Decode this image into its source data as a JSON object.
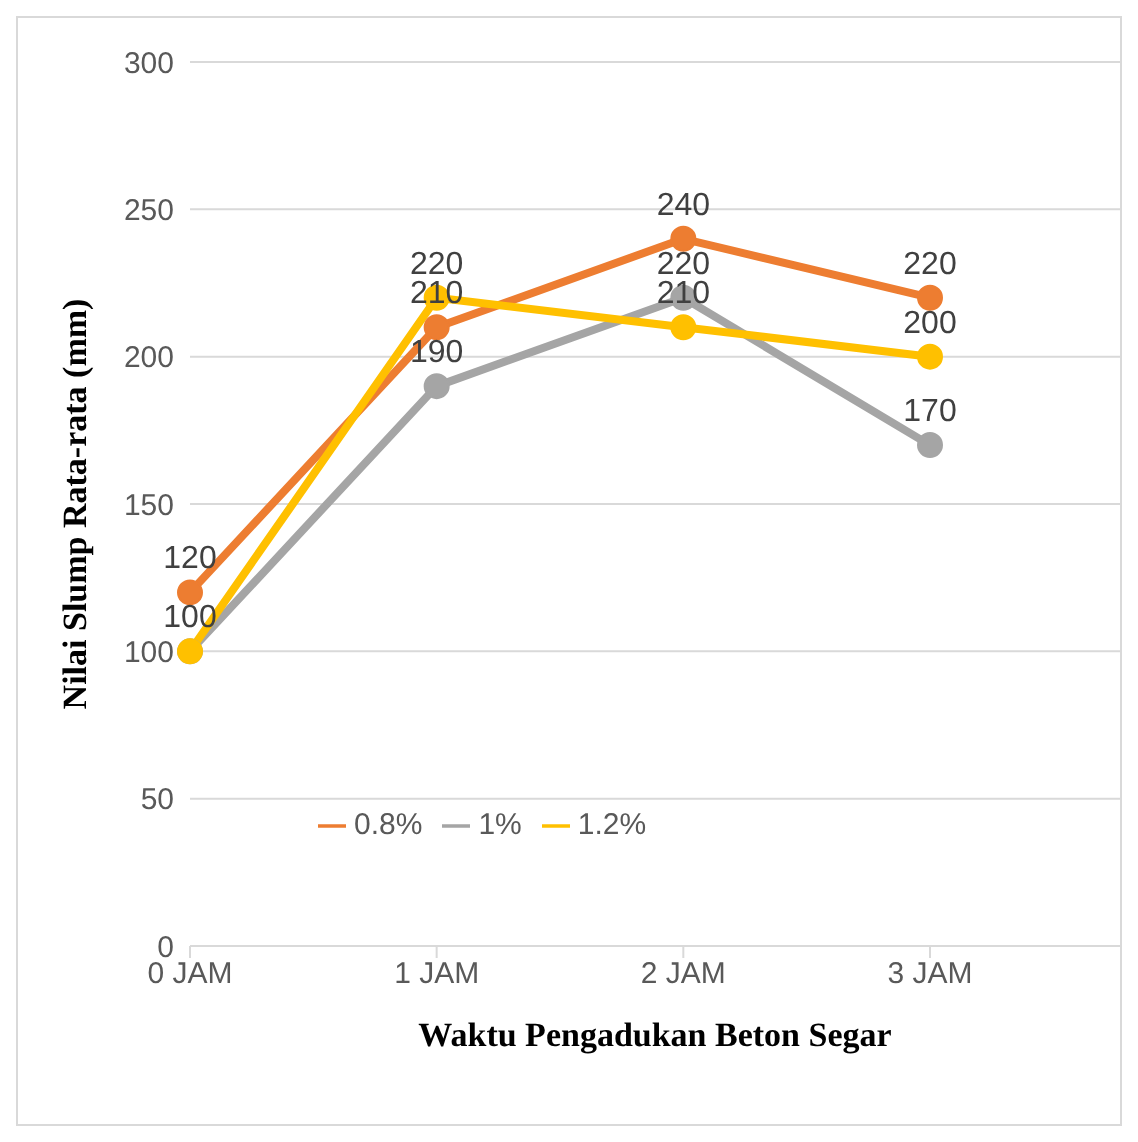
{
  "chart_data": {
    "type": "line",
    "xlabel": "Waktu Pengadukan Beton Segar",
    "ylabel": "Nilai Slump Rata-rata (mm)",
    "categories": [
      "0 JAM",
      "1 JAM",
      "2 JAM",
      "3 JAM"
    ],
    "series": [
      {
        "name": "0.8%",
        "color": "#ed7d31",
        "values": [
          120,
          210,
          240,
          220
        ],
        "value_labels": [
          "120",
          "210",
          "240",
          "220"
        ]
      },
      {
        "name": "1%",
        "color": "#a5a5a5",
        "values": [
          100,
          190,
          220,
          170
        ],
        "value_labels": [
          "100",
          "190",
          "220",
          "170"
        ]
      },
      {
        "name": "1.2%",
        "color": "#ffc000",
        "values": [
          100,
          220,
          210,
          200
        ],
        "value_labels": [
          null,
          "220",
          "210",
          "200"
        ]
      }
    ],
    "ylim": [
      0,
      300
    ],
    "yticks": [
      0,
      50,
      100,
      150,
      200,
      250,
      300
    ],
    "grid": "y",
    "legend": "bottom",
    "marker": "circle",
    "line_style": "solid"
  }
}
